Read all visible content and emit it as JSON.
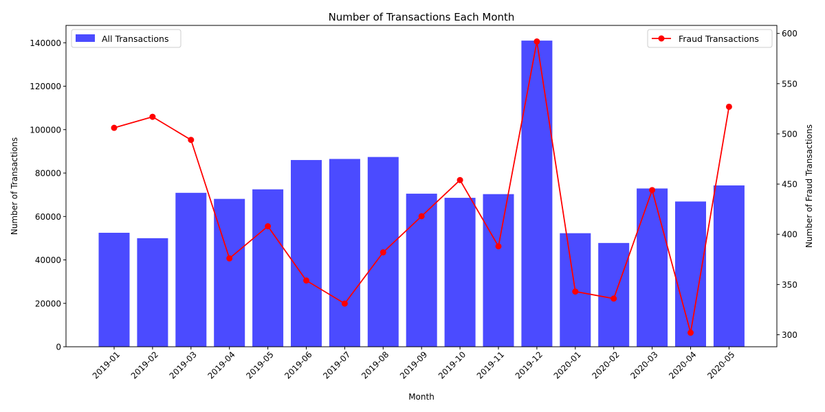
{
  "chart_data": {
    "type": "bar+line",
    "title": "Number of Transactions Each Month",
    "xlabel": "Month",
    "ylabel_left": "Number of Transactions",
    "ylabel_right": "Number of Fraud Transactions",
    "categories": [
      "2019-01",
      "2019-02",
      "2019-03",
      "2019-04",
      "2019-05",
      "2019-06",
      "2019-07",
      "2019-08",
      "2019-09",
      "2019-10",
      "2019-11",
      "2019-12",
      "2020-01",
      "2020-02",
      "2020-03",
      "2020-04",
      "2020-05"
    ],
    "series": [
      {
        "name": "All Transactions",
        "type": "bar",
        "axis": "left",
        "color": "#4b4bff",
        "values": [
          52500,
          50000,
          70900,
          68100,
          72500,
          86000,
          86500,
          87400,
          70500,
          68600,
          70300,
          141000,
          52300,
          47800,
          72900,
          66900,
          74300
        ]
      },
      {
        "name": "Fraud Transactions",
        "type": "line",
        "axis": "right",
        "color": "#ff0000",
        "values": [
          506,
          517,
          494,
          376,
          408,
          354,
          331,
          382,
          418,
          454,
          388,
          592,
          343,
          336,
          444,
          302,
          527
        ]
      }
    ],
    "ylim_left": [
      0,
      148000
    ],
    "yticks_left": [
      "0",
      "20000",
      "40000",
      "60000",
      "80000",
      "100000",
      "120000",
      "140000"
    ],
    "ylim_right": [
      288,
      608
    ],
    "yticks_right": [
      "300",
      "350",
      "400",
      "450",
      "500",
      "550",
      "600"
    ],
    "legend_left_position": "upper-left",
    "legend_right_position": "upper-right",
    "grid": false
  }
}
